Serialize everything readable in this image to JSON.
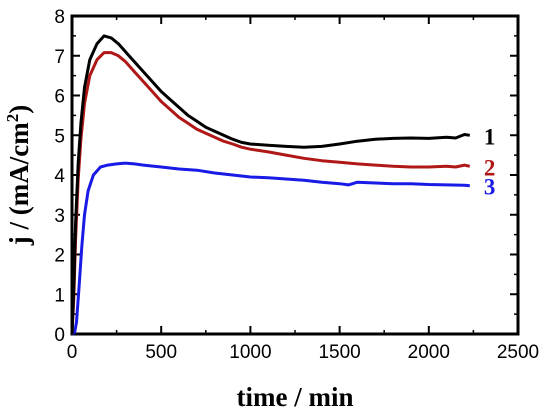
{
  "chart_data": {
    "type": "line",
    "title": "",
    "xlabel": "time / min",
    "ylabel_parts": {
      "prefix": "j / (mA/cm",
      "sup": "2",
      "suffix": ")"
    },
    "xlim": [
      0,
      2500
    ],
    "ylim": [
      0,
      8
    ],
    "x_ticks": [
      0,
      500,
      1000,
      1500,
      2000,
      2500
    ],
    "y_ticks": [
      0,
      1,
      2,
      3,
      4,
      5,
      6,
      7,
      8
    ],
    "grid": false,
    "legend": "inline labels at right end of each curve",
    "series": [
      {
        "name": "1",
        "color": "#000000",
        "points": [
          [
            0,
            0
          ],
          [
            10,
            1.2
          ],
          [
            20,
            2.8
          ],
          [
            35,
            4.3
          ],
          [
            50,
            5.3
          ],
          [
            70,
            6.2
          ],
          [
            100,
            6.9
          ],
          [
            140,
            7.3
          ],
          [
            180,
            7.5
          ],
          [
            220,
            7.45
          ],
          [
            260,
            7.3
          ],
          [
            300,
            7.1
          ],
          [
            350,
            6.85
          ],
          [
            400,
            6.6
          ],
          [
            450,
            6.35
          ],
          [
            500,
            6.1
          ],
          [
            550,
            5.9
          ],
          [
            600,
            5.7
          ],
          [
            650,
            5.5
          ],
          [
            700,
            5.35
          ],
          [
            750,
            5.2
          ],
          [
            800,
            5.1
          ],
          [
            850,
            5.0
          ],
          [
            900,
            4.9
          ],
          [
            950,
            4.82
          ],
          [
            1000,
            4.78
          ],
          [
            1100,
            4.75
          ],
          [
            1200,
            4.72
          ],
          [
            1300,
            4.7
          ],
          [
            1400,
            4.72
          ],
          [
            1500,
            4.78
          ],
          [
            1600,
            4.85
          ],
          [
            1700,
            4.9
          ],
          [
            1800,
            4.92
          ],
          [
            1900,
            4.93
          ],
          [
            2000,
            4.92
          ],
          [
            2100,
            4.95
          ],
          [
            2150,
            4.93
          ],
          [
            2200,
            5.02
          ],
          [
            2230,
            5.0
          ]
        ]
      },
      {
        "name": "2",
        "color": "#b01818",
        "points": [
          [
            0,
            0
          ],
          [
            10,
            0.9
          ],
          [
            20,
            2.4
          ],
          [
            35,
            3.9
          ],
          [
            50,
            4.9
          ],
          [
            70,
            5.8
          ],
          [
            100,
            6.5
          ],
          [
            140,
            6.9
          ],
          [
            180,
            7.08
          ],
          [
            220,
            7.08
          ],
          [
            260,
            7.0
          ],
          [
            300,
            6.85
          ],
          [
            350,
            6.6
          ],
          [
            400,
            6.35
          ],
          [
            450,
            6.1
          ],
          [
            500,
            5.85
          ],
          [
            550,
            5.65
          ],
          [
            600,
            5.45
          ],
          [
            650,
            5.3
          ],
          [
            700,
            5.15
          ],
          [
            750,
            5.05
          ],
          [
            800,
            4.95
          ],
          [
            850,
            4.85
          ],
          [
            900,
            4.78
          ],
          [
            950,
            4.7
          ],
          [
            1000,
            4.65
          ],
          [
            1100,
            4.58
          ],
          [
            1200,
            4.5
          ],
          [
            1300,
            4.42
          ],
          [
            1400,
            4.36
          ],
          [
            1500,
            4.32
          ],
          [
            1600,
            4.28
          ],
          [
            1700,
            4.25
          ],
          [
            1800,
            4.22
          ],
          [
            1900,
            4.2
          ],
          [
            2000,
            4.2
          ],
          [
            2100,
            4.22
          ],
          [
            2150,
            4.2
          ],
          [
            2200,
            4.25
          ],
          [
            2230,
            4.22
          ]
        ]
      },
      {
        "name": "3",
        "color": "#1a1ae6",
        "points": [
          [
            0,
            0
          ],
          [
            15,
            0.05
          ],
          [
            25,
            0.3
          ],
          [
            40,
            1.2
          ],
          [
            55,
            2.2
          ],
          [
            70,
            3.0
          ],
          [
            90,
            3.6
          ],
          [
            120,
            4.0
          ],
          [
            160,
            4.2
          ],
          [
            200,
            4.25
          ],
          [
            250,
            4.28
          ],
          [
            300,
            4.3
          ],
          [
            350,
            4.28
          ],
          [
            400,
            4.25
          ],
          [
            500,
            4.2
          ],
          [
            600,
            4.15
          ],
          [
            700,
            4.12
          ],
          [
            800,
            4.05
          ],
          [
            900,
            4.0
          ],
          [
            1000,
            3.95
          ],
          [
            1100,
            3.93
          ],
          [
            1200,
            3.9
          ],
          [
            1300,
            3.87
          ],
          [
            1400,
            3.82
          ],
          [
            1500,
            3.78
          ],
          [
            1550,
            3.75
          ],
          [
            1600,
            3.82
          ],
          [
            1700,
            3.8
          ],
          [
            1800,
            3.78
          ],
          [
            1900,
            3.78
          ],
          [
            2000,
            3.76
          ],
          [
            2100,
            3.75
          ],
          [
            2200,
            3.74
          ],
          [
            2230,
            3.73
          ]
        ]
      }
    ],
    "series_labels": [
      "1",
      "2",
      "3"
    ]
  }
}
